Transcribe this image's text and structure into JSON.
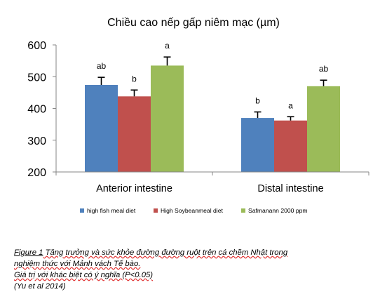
{
  "chart_data": {
    "type": "bar",
    "title": "Chiều cao nếp gấp niêm mạc (µm)",
    "xlabel": "",
    "ylabel": "",
    "categories": [
      "Anterior intestine",
      "Distal intestine"
    ],
    "series": [
      {
        "name": "high fish meal diet",
        "color": "#4f81bd",
        "values": [
          474,
          370
        ],
        "errors": [
          24,
          19
        ],
        "letters": [
          "ab",
          "b"
        ]
      },
      {
        "name": "High Soybeanmeal diet",
        "color": "#c0504d",
        "values": [
          438,
          362
        ],
        "errors": [
          20,
          12
        ],
        "letters": [
          "b",
          "a"
        ]
      },
      {
        "name": "Safmanann 2000 ppm",
        "color": "#9bbb59",
        "values": [
          535,
          470
        ],
        "errors": [
          27,
          19
        ],
        "letters": [
          "a",
          "ab"
        ]
      }
    ],
    "ylim": [
      200,
      600
    ],
    "yticks": [
      200,
      300,
      400,
      500,
      600
    ],
    "grid": false,
    "legend_position": "bottom"
  },
  "caption": {
    "fig_label": "Figure 1",
    "line1_rest": " Tăng trưởng và sức khỏe đường đường ruột trên cá chẽm Nhật trong",
    "line2": "nghiệm thức với Mảnh vách Tế bào.",
    "line3": "Giá trị với khác biệt có ý nghĩa (P<0.05)",
    "line4": "(Yu et al 2014)"
  }
}
